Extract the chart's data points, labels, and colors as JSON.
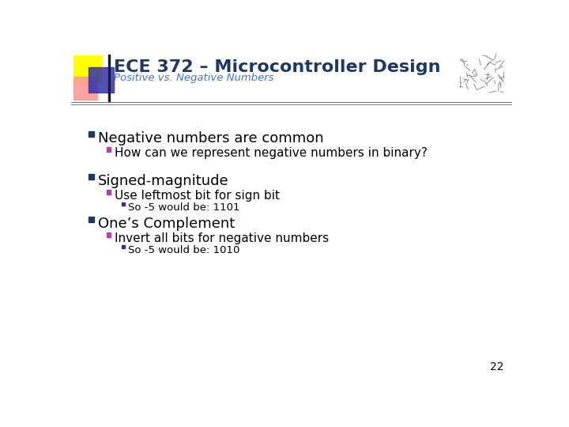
{
  "title": "ECE 372 – Microcontroller Design",
  "subtitle": "Positive vs. Negative Numbers",
  "slide_number": "22",
  "background_color": "#ffffff",
  "title_color": "#1F3864",
  "subtitle_color": "#4472C4",
  "text_color": "#000000",
  "bullet1_text": "Negative numbers are common",
  "bullet1_sub1": "How can we represent negative numbers in binary?",
  "bullet2_text": "Signed-magnitude",
  "bullet2_sub1": "Use leftmost bit for sign bit",
  "bullet2_sub1_sub1": "So -5 would be: 1101",
  "bullet3_text": "One’s Complement",
  "bullet3_sub1": "Invert all bits for negative numbers",
  "bullet3_sub1_sub1": "So -5 would be: 1010",
  "accent_yellow": "#FFFF00",
  "accent_red": "#FF9999",
  "accent_blue": "#3333AA",
  "l1_bullet_color": "#1F3864",
  "l2_bullet_color": "#AA44AA",
  "l3_bullet_color": "#333388",
  "separator_color": "#888888",
  "header_line_color": "#1F3864"
}
